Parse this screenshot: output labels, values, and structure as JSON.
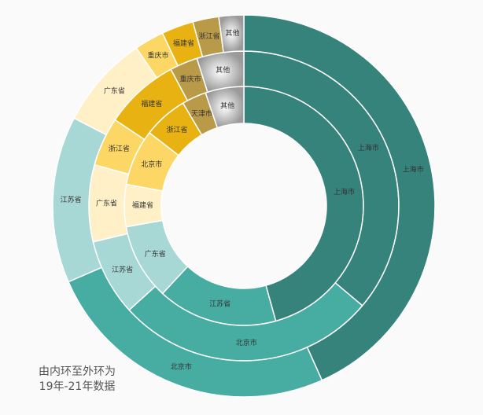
{
  "chart_data": {
    "type": "donut",
    "colors": [
      "#35837a",
      "#47aca1",
      "#a7d8d5",
      "#fff0c8",
      "#fdd765",
      "#e9b213",
      "#b99a48",
      "#9a9a9a"
    ],
    "rings": [
      {
        "categories": [
          "上海市",
          "江苏省",
          "广东省",
          "福建省",
          "北京市",
          "浙江省",
          "天津市",
          "其他"
        ],
        "values": [
          45.7,
          16.2,
          10.3,
          5.7,
          7.6,
          6.0,
          3.3,
          5.2
        ]
      },
      {
        "categories": [
          "上海市",
          "北京市",
          "江苏省",
          "广东省",
          "浙江省",
          "福建省",
          "重庆市",
          "其他"
        ],
        "values": [
          36.1,
          27.1,
          8.0,
          8.0,
          5.1,
          7.8,
          2.9,
          4.9
        ]
      },
      {
        "categories": [
          "上海市",
          "北京市",
          "江苏省",
          "广东省",
          "重庆市",
          "福建省",
          "浙江省",
          "其他"
        ],
        "values": [
          43.3,
          25.2,
          14.1,
          7.9,
          2.5,
          2.7,
          2.2,
          2.1
        ]
      }
    ],
    "annotation": [
      "由内环至外环为",
      "19年-21年数据"
    ]
  }
}
